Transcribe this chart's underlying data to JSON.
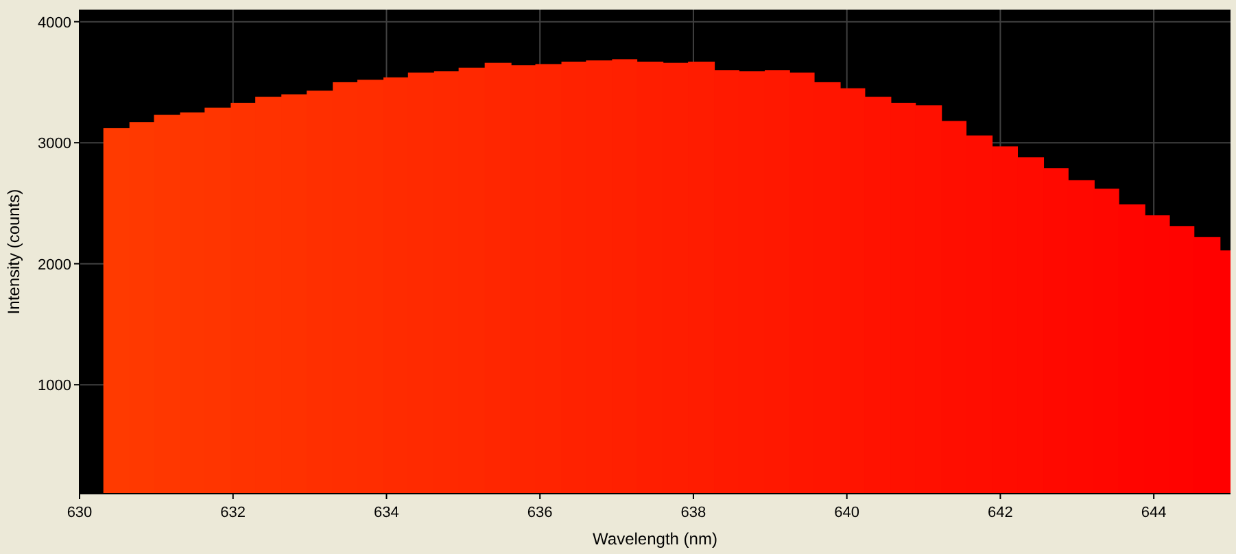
{
  "chart_data": {
    "type": "histogram",
    "xlabel": "Wavelength (nm)",
    "ylabel": "Intensity (counts)",
    "bins": [
      630.31,
      630.65,
      630.97,
      631.31,
      631.63,
      631.97,
      632.29,
      632.63,
      632.96,
      633.3,
      633.62,
      633.96,
      634.28,
      634.62,
      634.94,
      635.28,
      635.62,
      635.94,
      636.28,
      636.6,
      636.94,
      637.26,
      637.6,
      637.93,
      638.27,
      638.59,
      638.93,
      639.25,
      639.57,
      639.91,
      640.23,
      640.57,
      640.89,
      641.23,
      641.55,
      641.89,
      642.22,
      642.56,
      642.88,
      643.22,
      643.54,
      643.88,
      644.2,
      644.52,
      644.86,
      645
    ],
    "values": [
      3120,
      3170,
      3230,
      3250,
      3290,
      3330,
      3380,
      3400,
      3430,
      3500,
      3520,
      3540,
      3580,
      3590,
      3620,
      3660,
      3640,
      3650,
      3670,
      3680,
      3690,
      3670,
      3660,
      3670,
      3600,
      3590,
      3600,
      3580,
      3500,
      3450,
      3380,
      3330,
      3310,
      3180,
      3060,
      2970,
      2880,
      2790,
      2690,
      2620,
      2490,
      2400,
      2310,
      2220,
      2110
    ],
    "colors": [
      "#ff3a00",
      "#ff3900",
      "#ff3700",
      "#ff3600",
      "#ff3500",
      "#ff3300",
      "#ff3200",
      "#ff3100",
      "#ff2f00",
      "#ff2e00",
      "#ff2d00",
      "#ff2b00",
      "#ff2a00",
      "#ff2900",
      "#ff2800",
      "#ff2600",
      "#ff2500",
      "#ff2400",
      "#ff2200",
      "#ff2100",
      "#ff2000",
      "#ff1e00",
      "#ff1d00",
      "#ff1c00",
      "#ff1a00",
      "#ff1900",
      "#ff1800",
      "#ff1600",
      "#ff1500",
      "#ff1400",
      "#ff1200",
      "#ff1100",
      "#ff1000",
      "#ff0e00",
      "#ff0d00",
      "#ff0c00",
      "#ff0b00",
      "#ff0900",
      "#ff0800",
      "#ff0700",
      "#ff0500",
      "#ff0400",
      "#ff0300",
      "#ff0100",
      "#ff0000"
    ],
    "xlim": [
      630,
      645
    ],
    "xticks": [
      630,
      632,
      634,
      636,
      638,
      640,
      642,
      644
    ],
    "ylim": [
      100,
      4100
    ],
    "yticks": [
      1000,
      2000,
      3000,
      4000
    ],
    "grid": true
  }
}
